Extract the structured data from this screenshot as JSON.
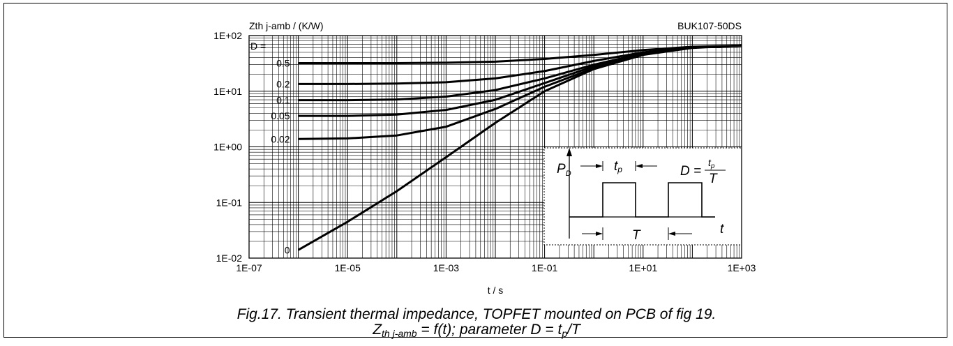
{
  "chart_data": {
    "type": "line",
    "x_scale": "log",
    "y_scale": "log",
    "xlim": [
      1e-07,
      1000
    ],
    "ylim": [
      0.01,
      100
    ],
    "ylabel": "Zth j-amb / (K/W)",
    "xlabel": "t / s",
    "part_number": "BUK107-50DS",
    "x_tick_labels": [
      "1E-07",
      "1E-05",
      "1E-03",
      "1E-01",
      "1E+01",
      "1E+03"
    ],
    "y_tick_labels": [
      "1E-02",
      "1E-01",
      "1E+00",
      "1E+01",
      "1E+02"
    ],
    "legend_header": "D =",
    "grid": true,
    "x": [
      1e-06,
      1e-05,
      0.0001,
      0.001,
      0.01,
      0.1,
      1,
      10,
      100,
      1000
    ],
    "series": [
      {
        "name": "0.5",
        "values": [
          32,
          32,
          32,
          32.5,
          34,
          38,
          45,
          55,
          63,
          66
        ]
      },
      {
        "name": "0.2",
        "values": [
          13.5,
          13.5,
          13.7,
          14.5,
          17,
          23,
          35,
          50,
          62,
          66
        ]
      },
      {
        "name": "0.1",
        "values": [
          6.9,
          6.9,
          7.1,
          8,
          10.5,
          17,
          30,
          48,
          61,
          66
        ]
      },
      {
        "name": "0.05",
        "values": [
          3.6,
          3.6,
          3.8,
          4.6,
          7,
          14,
          28,
          47,
          61,
          66
        ]
      },
      {
        "name": "0.02",
        "values": [
          1.38,
          1.42,
          1.6,
          2.3,
          4.8,
          12,
          26,
          46,
          61,
          66
        ]
      },
      {
        "name": "0",
        "values": [
          0.014,
          0.045,
          0.16,
          0.65,
          2.7,
          10,
          25,
          45,
          60,
          66
        ]
      }
    ]
  },
  "inset": {
    "pd_label": "P",
    "pd_sub": "D",
    "tp_label": "t",
    "tp_sub": "p",
    "d_label": "D =",
    "frac_num_main": "t",
    "frac_num_sub": "p",
    "frac_den": "T",
    "period_label": "T",
    "time_label": "t"
  },
  "caption": {
    "line1": "Fig.17.  Transient thermal impedance, TOPFET mounted on PCB of fig 19.",
    "line2_z": "Z",
    "line2_sub": "th j-amb",
    "line2_rest": " = f(t); parameter D = t",
    "line2_tsub": "p",
    "line2_end": "/T"
  }
}
